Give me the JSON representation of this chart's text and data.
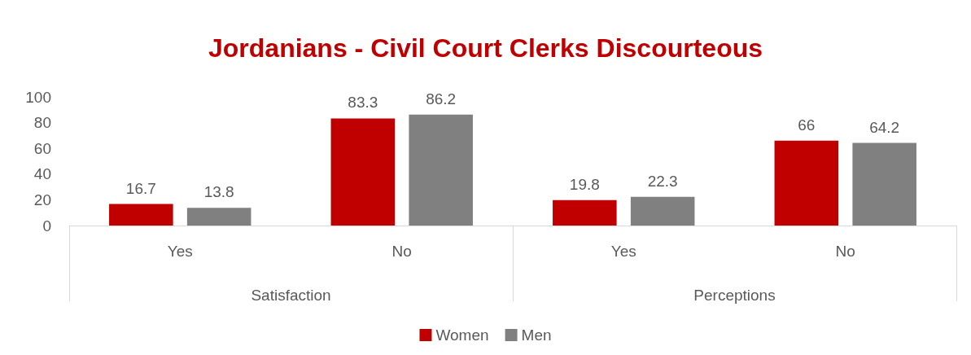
{
  "chart_data": {
    "type": "bar",
    "title": "Jordanians - Civil Court Clerks Discourteous",
    "categories": [
      "Yes",
      "No",
      "Yes",
      "No"
    ],
    "series": [
      {
        "name": "Women",
        "color": "#c00000",
        "values": [
          16.7,
          83.3,
          19.8,
          66
        ]
      },
      {
        "name": "Men",
        "color": "#808080",
        "values": [
          13.8,
          86.2,
          22.3,
          64.2
        ]
      }
    ],
    "ylim": [
      0,
      100
    ],
    "yticks": [
      0,
      20,
      40,
      60,
      80,
      100
    ],
    "grid": false,
    "legend": "bottom",
    "data_labels": true,
    "annotations": [
      "Satisfaction",
      "Perceptions"
    ]
  }
}
